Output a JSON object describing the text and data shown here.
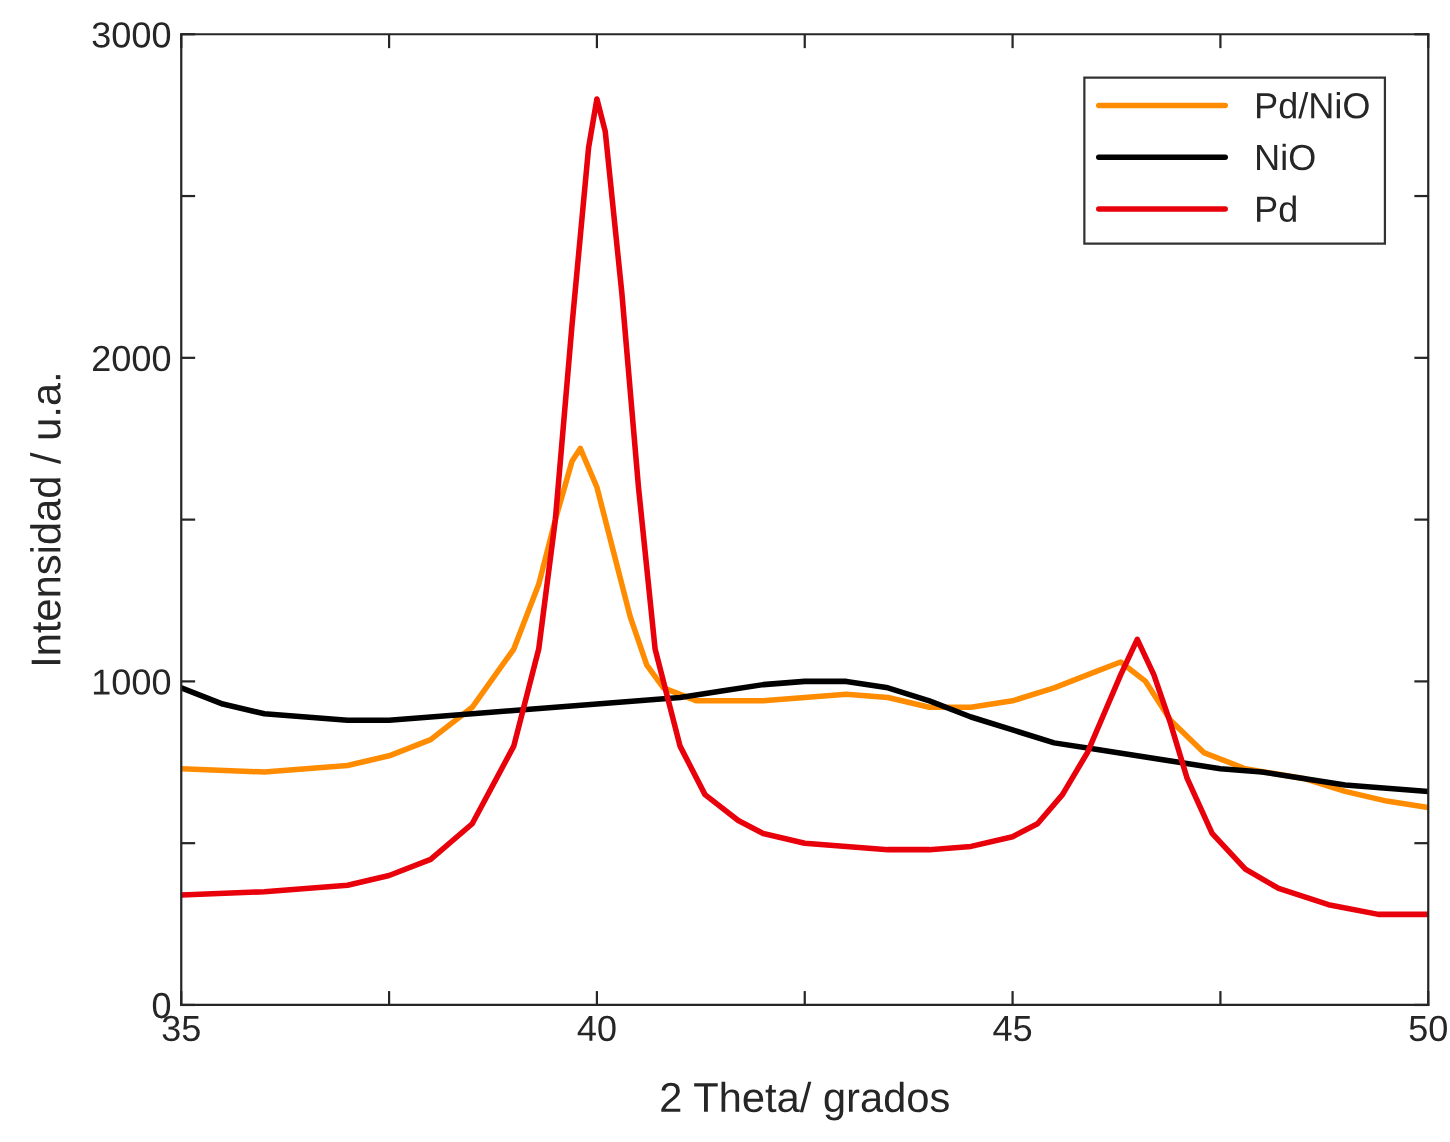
{
  "chart_data": {
    "type": "line",
    "xlabel": "2 Theta/ grados",
    "ylabel": "Intensidad / u.a.",
    "xlim": [
      35,
      50
    ],
    "ylim": [
      0,
      3000
    ],
    "xticks": [
      35,
      {
        "value": 37.5,
        "label": null
      },
      40,
      {
        "value": 42.5,
        "label": null
      },
      45,
      {
        "value": 47.5,
        "label": null
      },
      50
    ],
    "yticks": [
      0,
      {
        "value": 500,
        "label": null
      },
      1000,
      {
        "value": 1500,
        "label": null
      },
      2000,
      {
        "value": 2500,
        "label": null
      },
      3000
    ],
    "grid": false,
    "legend": "top right",
    "marker": "none",
    "line_style": "solid",
    "series": [
      {
        "name": "Pd/NiO",
        "color": "#ff8c00",
        "x": [
          35,
          36,
          37,
          37.5,
          38,
          38.5,
          39,
          39.3,
          39.5,
          39.7,
          39.8,
          40.0,
          40.2,
          40.4,
          40.6,
          40.8,
          41.2,
          42,
          42.5,
          43,
          43.5,
          44,
          44.5,
          45,
          45.5,
          46,
          46.3,
          46.6,
          46.9,
          47.3,
          47.8,
          48.5,
          49,
          49.5,
          50
        ],
        "values": [
          730,
          720,
          740,
          770,
          820,
          920,
          1100,
          1300,
          1500,
          1680,
          1720,
          1600,
          1400,
          1200,
          1050,
          980,
          940,
          940,
          950,
          960,
          950,
          920,
          920,
          940,
          980,
          1030,
          1060,
          1000,
          880,
          780,
          730,
          700,
          660,
          630,
          610
        ]
      },
      {
        "name": "NiO",
        "color": "#000000",
        "x": [
          35,
          35.5,
          36,
          36.5,
          37,
          37.5,
          38,
          38.5,
          39,
          39.5,
          40,
          40.5,
          41,
          41.5,
          42,
          42.5,
          43,
          43.5,
          44,
          44.5,
          45,
          45.5,
          46,
          46.5,
          47,
          47.5,
          48,
          48.5,
          49,
          49.5,
          50
        ],
        "values": [
          980,
          930,
          900,
          890,
          880,
          880,
          890,
          900,
          910,
          920,
          930,
          940,
          950,
          970,
          990,
          1000,
          1000,
          980,
          940,
          890,
          850,
          810,
          790,
          770,
          750,
          730,
          720,
          700,
          680,
          670,
          660
        ]
      },
      {
        "name": "Pd",
        "color": "#e8000b",
        "x": [
          35,
          36,
          37,
          37.5,
          38,
          38.5,
          39,
          39.3,
          39.5,
          39.7,
          39.9,
          40.0,
          40.1,
          40.3,
          40.5,
          40.7,
          41,
          41.3,
          41.7,
          42,
          42.5,
          43,
          43.5,
          44,
          44.5,
          45,
          45.3,
          45.6,
          45.9,
          46.1,
          46.3,
          46.5,
          46.7,
          46.9,
          47.1,
          47.4,
          47.8,
          48.2,
          48.8,
          49.4,
          50
        ],
        "values": [
          340,
          350,
          370,
          400,
          450,
          560,
          800,
          1100,
          1500,
          2100,
          2650,
          2800,
          2700,
          2200,
          1600,
          1100,
          800,
          650,
          570,
          530,
          500,
          490,
          480,
          480,
          490,
          520,
          560,
          650,
          780,
          900,
          1020,
          1130,
          1020,
          870,
          700,
          530,
          420,
          360,
          310,
          280,
          280
        ]
      }
    ]
  }
}
